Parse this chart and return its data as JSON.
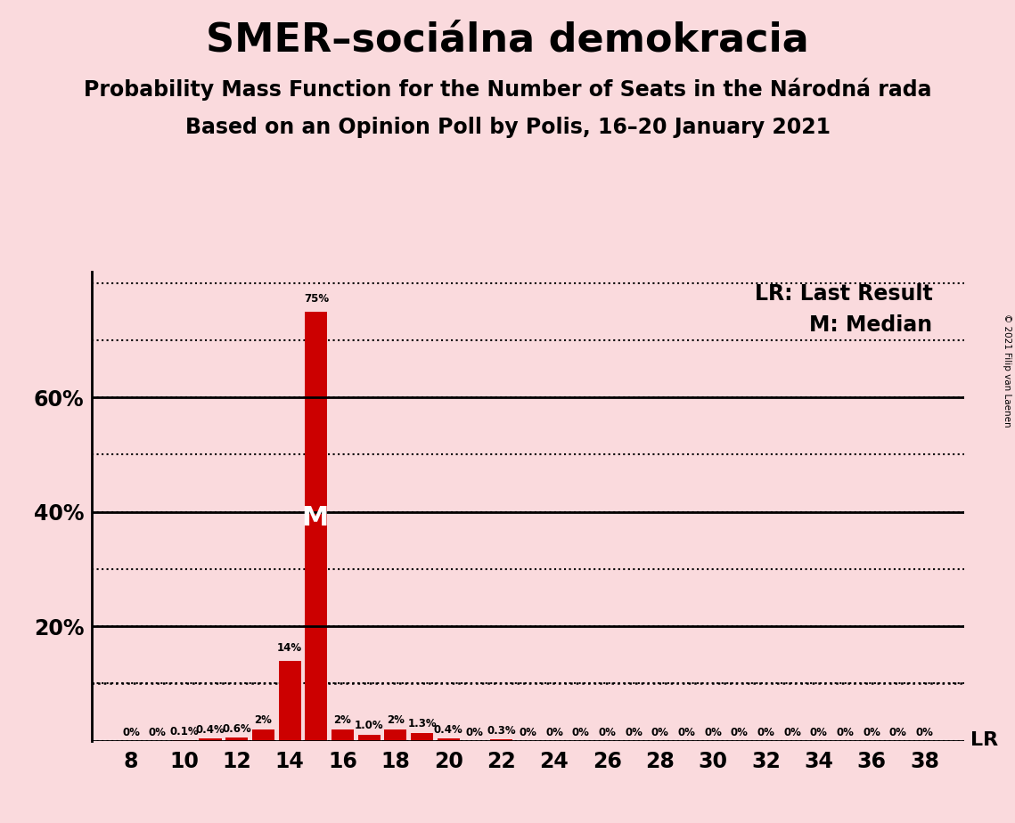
{
  "title": "SMER–sociálna demokracia",
  "subtitle1": "Probability Mass Function for the Number of Seats in the Národná rada",
  "subtitle2": "Based on an Opinion Poll by Polis, 16–20 January 2021",
  "copyright": "© 2021 Filip van Laenen",
  "background_color": "#fadadd",
  "bar_color": "#cc0000",
  "seats": [
    8,
    9,
    10,
    11,
    12,
    13,
    14,
    15,
    16,
    17,
    18,
    19,
    20,
    21,
    22,
    23,
    24,
    25,
    26,
    27,
    28,
    29,
    30,
    31,
    32,
    33,
    34,
    35,
    36,
    37,
    38
  ],
  "probabilities": [
    0.0,
    0.0,
    0.1,
    0.4,
    0.6,
    2.0,
    14.0,
    75.0,
    2.0,
    1.0,
    2.0,
    1.3,
    0.4,
    0.0,
    0.3,
    0.0,
    0.0,
    0.0,
    0.0,
    0.0,
    0.0,
    0.0,
    0.0,
    0.0,
    0.0,
    0.0,
    0.0,
    0.0,
    0.0,
    0.0,
    0.0
  ],
  "bar_labels": [
    "0%",
    "0%",
    "0.1%",
    "0.4%",
    "0.6%",
    "2%",
    "14%",
    "75%",
    "2%",
    "1.0%",
    "2%",
    "1.3%",
    "0.4%",
    "0%",
    "0.3%",
    "0%",
    "0%",
    "0%",
    "0%",
    "0%",
    "0%",
    "0%",
    "0%",
    "0%",
    "0%",
    "0%",
    "0%",
    "0%",
    "0%",
    "0%",
    "0%"
  ],
  "median_seat": 15,
  "lr_value": 10.0,
  "ylim": [
    0,
    82
  ],
  "xlabel_seats": [
    8,
    10,
    12,
    14,
    16,
    18,
    20,
    22,
    24,
    26,
    28,
    30,
    32,
    34,
    36,
    38
  ],
  "legend_lr": "LR: Last Result",
  "legend_m": "M: Median",
  "title_fontsize": 32,
  "subtitle_fontsize": 17
}
